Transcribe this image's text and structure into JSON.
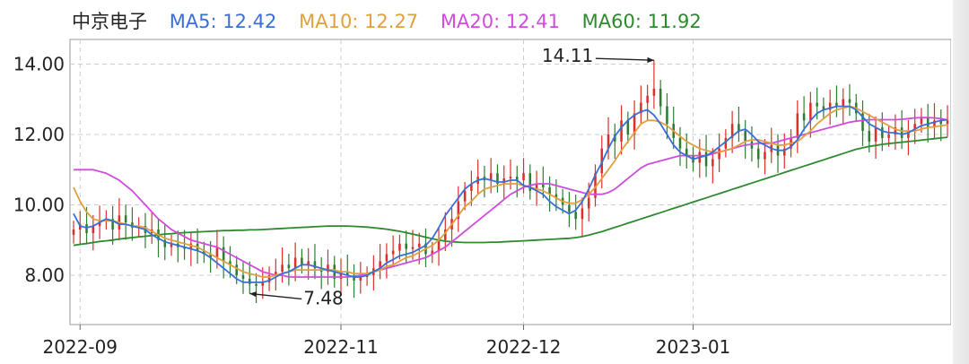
{
  "legend": {
    "stock_name": "中京电子",
    "ma5": "MA5: 12.42",
    "ma10": "MA10: 12.27",
    "ma20": "MA20: 12.41",
    "ma60": "MA60: 11.92"
  },
  "colors": {
    "up": "#d9302c",
    "down": "#2e7d32",
    "ma5": "#3a6fd8",
    "ma10": "#e0a040",
    "ma20": "#d04cdc",
    "ma60": "#2f8a2f",
    "grid": "#cccccc",
    "text": "#222222"
  },
  "chart_data": {
    "type": "candlestick",
    "y_ticks": [
      "14.00",
      "12.00",
      "10.00",
      "8.00"
    ],
    "y_tick_values": [
      14,
      12,
      10,
      8
    ],
    "ylim": [
      6.6,
      14.7
    ],
    "x_ticks": [
      "2022-09",
      "2022-11",
      "2022-12",
      "2023-01"
    ],
    "x_tick_index": [
      1,
      41,
      69,
      95
    ],
    "annotations": [
      {
        "label": "14.11",
        "index": 89,
        "value": 14.11,
        "kind": "high"
      },
      {
        "label": "7.48",
        "index": 27,
        "value": 7.48,
        "kind": "low"
      }
    ],
    "close": [
      9.3,
      9.45,
      9.2,
      9.4,
      9.55,
      9.6,
      9.3,
      9.7,
      9.5,
      9.35,
      9.4,
      9.2,
      9.3,
      9.0,
      8.8,
      8.9,
      8.8,
      8.75,
      8.9,
      8.7,
      8.6,
      8.5,
      8.8,
      8.4,
      8.3,
      8.0,
      7.9,
      7.75,
      7.7,
      7.8,
      8.0,
      8.1,
      8.3,
      8.2,
      8.5,
      8.3,
      8.4,
      8.2,
      8.1,
      8.3,
      7.9,
      8.1,
      8.0,
      7.85,
      7.95,
      8.0,
      8.2,
      8.4,
      8.6,
      8.7,
      8.9,
      8.75,
      8.8,
      8.9,
      8.6,
      8.7,
      9.0,
      9.3,
      9.6,
      10.1,
      10.4,
      10.6,
      10.8,
      10.7,
      10.9,
      10.6,
      10.75,
      10.8,
      10.7,
      10.9,
      10.4,
      10.6,
      10.5,
      10.3,
      10.2,
      10.0,
      9.8,
      9.6,
      9.9,
      10.2,
      10.9,
      11.6,
      12.0,
      11.8,
      12.4,
      12.0,
      12.6,
      12.9,
      13.1,
      13.3,
      12.8,
      12.3,
      11.9,
      11.6,
      11.4,
      11.2,
      11.5,
      11.1,
      11.3,
      11.6,
      11.9,
      12.3,
      12.1,
      11.8,
      11.6,
      11.3,
      11.5,
      11.7,
      11.4,
      11.6,
      11.9,
      12.6,
      12.4,
      12.9,
      12.8,
      12.7,
      12.9,
      12.8,
      13.0,
      12.9,
      12.6,
      12.1,
      11.8,
      12.2,
      11.9,
      12.0,
      12.2,
      11.9,
      12.1,
      12.3,
      12.5,
      12.2,
      12.4,
      12.3,
      12.4
    ],
    "ma5": [
      9.75,
      9.4,
      9.35,
      9.4,
      9.5,
      9.6,
      9.55,
      9.45,
      9.45,
      9.4,
      9.35,
      9.3,
      9.15,
      9.05,
      8.95,
      8.9,
      8.85,
      8.8,
      8.75,
      8.7,
      8.62,
      8.5,
      8.35,
      8.2,
      8.05,
      7.9,
      7.8,
      7.8,
      7.8,
      7.8,
      7.85,
      7.95,
      8.05,
      8.1,
      8.2,
      8.3,
      8.3,
      8.25,
      8.2,
      8.15,
      8.1,
      8.05,
      8.0,
      7.95,
      7.95,
      8.0,
      8.1,
      8.2,
      8.35,
      8.45,
      8.55,
      8.6,
      8.65,
      8.75,
      8.85,
      9.05,
      9.35,
      9.7,
      9.95,
      10.2,
      10.45,
      10.6,
      10.7,
      10.75,
      10.7,
      10.65,
      10.65,
      10.7,
      10.7,
      10.55,
      10.5,
      10.4,
      10.3,
      10.1,
      9.95,
      9.85,
      9.75,
      9.85,
      10.1,
      10.45,
      10.85,
      11.2,
      11.6,
      11.95,
      12.2,
      12.4,
      12.55,
      12.65,
      12.7,
      12.55,
      12.3,
      12.0,
      11.7,
      11.5,
      11.4,
      11.3,
      11.35,
      11.4,
      11.5,
      11.65,
      11.8,
      11.95,
      12.1,
      12.15,
      12.0,
      11.8,
      11.7,
      11.6,
      11.55,
      11.55,
      11.65,
      11.85,
      12.15,
      12.4,
      12.6,
      12.7,
      12.75,
      12.8,
      12.8,
      12.8,
      12.7,
      12.5,
      12.3,
      12.2,
      12.1,
      12.05,
      12.05,
      12.0,
      12.05,
      12.15,
      12.25,
      12.3,
      12.35,
      12.4,
      12.42
    ],
    "ma10": [
      10.5,
      10.1,
      9.8,
      9.6,
      9.55,
      9.55,
      9.55,
      9.5,
      9.45,
      9.4,
      9.4,
      9.35,
      9.25,
      9.15,
      9.05,
      9.0,
      8.95,
      8.9,
      8.85,
      8.8,
      8.7,
      8.6,
      8.5,
      8.4,
      8.3,
      8.2,
      8.1,
      8.05,
      8.0,
      7.95,
      7.95,
      8.0,
      8.05,
      8.1,
      8.15,
      8.15,
      8.15,
      8.15,
      8.15,
      8.15,
      8.15,
      8.1,
      8.1,
      8.05,
      8.05,
      8.05,
      8.1,
      8.15,
      8.25,
      8.3,
      8.4,
      8.5,
      8.55,
      8.65,
      8.75,
      8.85,
      9.0,
      9.2,
      9.45,
      9.7,
      9.95,
      10.1,
      10.3,
      10.45,
      10.5,
      10.55,
      10.6,
      10.6,
      10.6,
      10.55,
      10.5,
      10.45,
      10.4,
      10.3,
      10.2,
      10.1,
      10.05,
      10.05,
      10.15,
      10.3,
      10.5,
      10.75,
      11.0,
      11.25,
      11.55,
      11.8,
      12.05,
      12.3,
      12.4,
      12.4,
      12.35,
      12.25,
      12.1,
      11.95,
      11.8,
      11.7,
      11.6,
      11.55,
      11.5,
      11.5,
      11.55,
      11.6,
      11.7,
      11.8,
      11.85,
      11.85,
      11.8,
      11.75,
      11.7,
      11.7,
      11.75,
      11.8,
      11.95,
      12.1,
      12.3,
      12.45,
      12.6,
      12.7,
      12.75,
      12.8,
      12.75,
      12.65,
      12.55,
      12.45,
      12.35,
      12.25,
      12.15,
      12.1,
      12.1,
      12.1,
      12.15,
      12.2,
      12.22,
      12.25,
      12.27
    ],
    "ma20": [
      11.0,
      11.0,
      11.0,
      11.0,
      10.95,
      10.9,
      10.8,
      10.7,
      10.55,
      10.4,
      10.2,
      10.0,
      9.8,
      9.6,
      9.45,
      9.3,
      9.2,
      9.1,
      9.0,
      8.95,
      8.9,
      8.85,
      8.8,
      8.7,
      8.6,
      8.5,
      8.4,
      8.3,
      8.2,
      8.1,
      8.05,
      8.0,
      8.0,
      7.95,
      7.95,
      7.95,
      7.95,
      7.95,
      7.95,
      7.95,
      7.95,
      7.95,
      7.95,
      7.97,
      8.0,
      8.05,
      8.1,
      8.15,
      8.2,
      8.25,
      8.3,
      8.35,
      8.4,
      8.45,
      8.5,
      8.6,
      8.7,
      8.8,
      8.95,
      9.1,
      9.25,
      9.4,
      9.55,
      9.7,
      9.85,
      10.0,
      10.15,
      10.3,
      10.4,
      10.5,
      10.55,
      10.6,
      10.6,
      10.6,
      10.55,
      10.5,
      10.45,
      10.4,
      10.35,
      10.3,
      10.3,
      10.3,
      10.35,
      10.45,
      10.6,
      10.75,
      10.9,
      11.05,
      11.15,
      11.2,
      11.25,
      11.3,
      11.35,
      11.4,
      11.4,
      11.4,
      11.4,
      11.4,
      11.45,
      11.5,
      11.55,
      11.6,
      11.65,
      11.7,
      11.72,
      11.75,
      11.75,
      11.75,
      11.8,
      11.85,
      11.9,
      11.95,
      12.0,
      12.05,
      12.1,
      12.15,
      12.2,
      12.25,
      12.3,
      12.35,
      12.38,
      12.4,
      12.42,
      12.42,
      12.42,
      12.42,
      12.42,
      12.43,
      12.45,
      12.47,
      12.48,
      12.48,
      12.47,
      12.45,
      12.41
    ],
    "ma60": [
      8.85,
      8.88,
      8.9,
      8.93,
      8.96,
      8.98,
      9.0,
      9.03,
      9.05,
      9.07,
      9.09,
      9.11,
      9.13,
      9.15,
      9.17,
      9.18,
      9.2,
      9.21,
      9.22,
      9.23,
      9.24,
      9.25,
      9.26,
      9.27,
      9.27,
      9.28,
      9.28,
      9.29,
      9.29,
      9.3,
      9.31,
      9.32,
      9.33,
      9.34,
      9.35,
      9.36,
      9.37,
      9.38,
      9.39,
      9.4,
      9.4,
      9.4,
      9.4,
      9.39,
      9.38,
      9.37,
      9.35,
      9.33,
      9.31,
      9.28,
      9.25,
      9.21,
      9.17,
      9.13,
      9.08,
      9.04,
      9.0,
      8.97,
      8.95,
      8.94,
      8.93,
      8.93,
      8.93,
      8.93,
      8.94,
      8.94,
      8.95,
      8.96,
      8.97,
      8.98,
      8.99,
      9.0,
      9.01,
      9.02,
      9.03,
      9.04,
      9.05,
      9.07,
      9.1,
      9.14,
      9.19,
      9.24,
      9.3,
      9.36,
      9.42,
      9.48,
      9.54,
      9.6,
      9.66,
      9.72,
      9.78,
      9.84,
      9.9,
      9.96,
      10.02,
      10.08,
      10.14,
      10.2,
      10.26,
      10.32,
      10.38,
      10.44,
      10.5,
      10.56,
      10.62,
      10.68,
      10.74,
      10.8,
      10.86,
      10.92,
      10.98,
      11.04,
      11.1,
      11.16,
      11.22,
      11.28,
      11.34,
      11.4,
      11.46,
      11.52,
      11.58,
      11.62,
      11.66,
      11.69,
      11.72,
      11.74,
      11.76,
      11.78,
      11.8,
      11.82,
      11.84,
      11.86,
      11.88,
      11.9,
      11.92
    ]
  }
}
